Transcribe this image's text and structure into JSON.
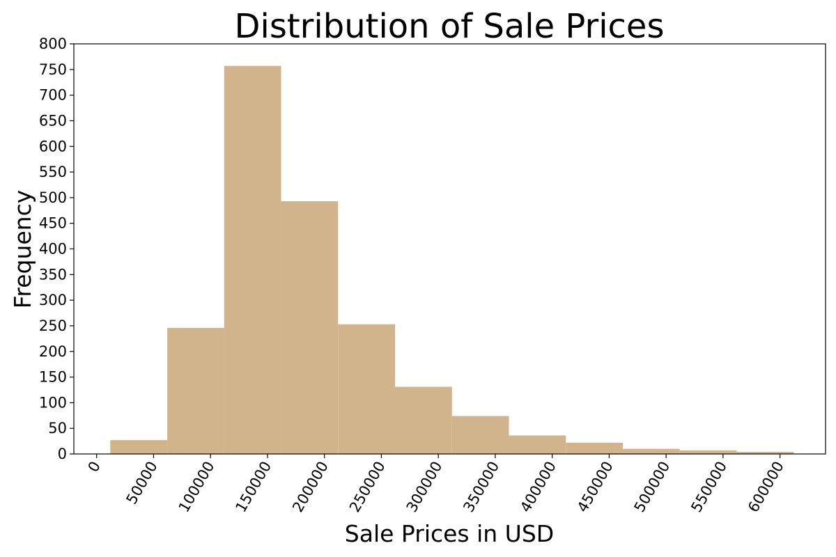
{
  "chart_data": {
    "type": "bar",
    "title": "Distribution of Sale Prices",
    "xlabel": "Sale Prices in USD",
    "ylabel": "Frequency",
    "bar_color": "#d2b48c",
    "xlim": [
      -20000,
      640000
    ],
    "ylim": [
      0,
      800
    ],
    "bins": [
      {
        "x0": 12000,
        "x1": 62000,
        "value": 27
      },
      {
        "x0": 62000,
        "x1": 112000,
        "value": 246
      },
      {
        "x0": 112000,
        "x1": 162000,
        "value": 757
      },
      {
        "x0": 162000,
        "x1": 212000,
        "value": 493
      },
      {
        "x0": 212000,
        "x1": 262000,
        "value": 253
      },
      {
        "x0": 262000,
        "x1": 312000,
        "value": 131
      },
      {
        "x0": 312000,
        "x1": 362000,
        "value": 74
      },
      {
        "x0": 362000,
        "x1": 412000,
        "value": 36
      },
      {
        "x0": 412000,
        "x1": 462000,
        "value": 22
      },
      {
        "x0": 462000,
        "x1": 512000,
        "value": 10
      },
      {
        "x0": 512000,
        "x1": 562000,
        "value": 7
      },
      {
        "x0": 562000,
        "x1": 612000,
        "value": 4
      }
    ],
    "x_ticks": [
      {
        "value": 0,
        "label": "0"
      },
      {
        "value": 50000,
        "label": "50000"
      },
      {
        "value": 100000,
        "label": "100000"
      },
      {
        "value": 150000,
        "label": "150000"
      },
      {
        "value": 200000,
        "label": "200000"
      },
      {
        "value": 250000,
        "label": "250000"
      },
      {
        "value": 300000,
        "label": "300000"
      },
      {
        "value": 350000,
        "label": "350000"
      },
      {
        "value": 400000,
        "label": "400000"
      },
      {
        "value": 450000,
        "label": "450000"
      },
      {
        "value": 500000,
        "label": "500000"
      },
      {
        "value": 550000,
        "label": "550000"
      },
      {
        "value": 600000,
        "label": "600000"
      }
    ],
    "y_ticks": [
      {
        "value": 0,
        "label": "0"
      },
      {
        "value": 50,
        "label": "50"
      },
      {
        "value": 100,
        "label": "100"
      },
      {
        "value": 150,
        "label": "150"
      },
      {
        "value": 200,
        "label": "200"
      },
      {
        "value": 250,
        "label": "250"
      },
      {
        "value": 300,
        "label": "300"
      },
      {
        "value": 350,
        "label": "350"
      },
      {
        "value": 400,
        "label": "400"
      },
      {
        "value": 450,
        "label": "450"
      },
      {
        "value": 500,
        "label": "500"
      },
      {
        "value": 550,
        "label": "550"
      },
      {
        "value": 600,
        "label": "600"
      },
      {
        "value": 650,
        "label": "650"
      },
      {
        "value": 700,
        "label": "700"
      },
      {
        "value": 750,
        "label": "750"
      },
      {
        "value": 800,
        "label": "800"
      }
    ],
    "grid": false,
    "legend": "none"
  }
}
